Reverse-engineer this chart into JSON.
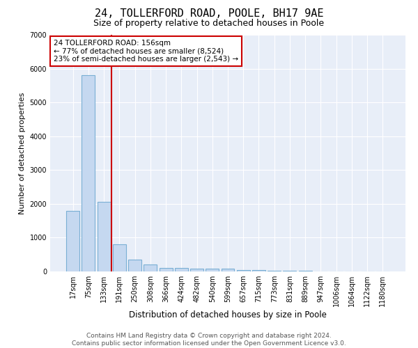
{
  "title": "24, TOLLERFORD ROAD, POOLE, BH17 9AE",
  "subtitle": "Size of property relative to detached houses in Poole",
  "xlabel": "Distribution of detached houses by size in Poole",
  "ylabel": "Number of detached properties",
  "footer_line1": "Contains HM Land Registry data © Crown copyright and database right 2024.",
  "footer_line2": "Contains public sector information licensed under the Open Government Licence v3.0.",
  "categories": [
    "17sqm",
    "75sqm",
    "133sqm",
    "191sqm",
    "250sqm",
    "308sqm",
    "366sqm",
    "424sqm",
    "482sqm",
    "540sqm",
    "599sqm",
    "657sqm",
    "715sqm",
    "773sqm",
    "831sqm",
    "889sqm",
    "947sqm",
    "1006sqm",
    "1064sqm",
    "1122sqm",
    "1180sqm"
  ],
  "values": [
    1800,
    5800,
    2050,
    800,
    350,
    200,
    110,
    110,
    90,
    75,
    90,
    50,
    40,
    30,
    20,
    15,
    10,
    8,
    5,
    4,
    3
  ],
  "bar_color": "#c5d8f0",
  "bar_edgecolor": "#7aafd4",
  "background_color": "#e8eef8",
  "grid_color": "#ffffff",
  "red_line_x": 2.5,
  "annotation_text": "24 TOLLERFORD ROAD: 156sqm\n← 77% of detached houses are smaller (8,524)\n23% of semi-detached houses are larger (2,543) →",
  "annotation_box_color": "#ffffff",
  "annotation_border_color": "#cc0000",
  "ylim": [
    0,
    7000
  ],
  "yticks": [
    0,
    1000,
    2000,
    3000,
    4000,
    5000,
    6000,
    7000
  ],
  "title_fontsize": 11,
  "subtitle_fontsize": 9,
  "tick_fontsize": 7,
  "ylabel_fontsize": 8,
  "xlabel_fontsize": 8.5,
  "annotation_fontsize": 7.5,
  "footer_fontsize": 6.5
}
